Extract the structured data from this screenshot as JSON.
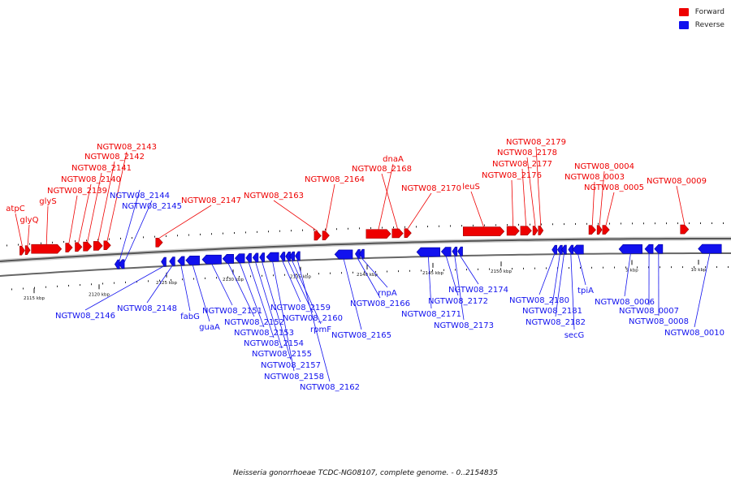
{
  "colors": {
    "forward": "#ee0000",
    "reverse": "#1111ee",
    "axis": "#555555"
  },
  "legend": {
    "forward": "Forward",
    "reverse": "Reverse"
  },
  "caption": "Neisseria gonorrhoeae TCDC-NG08107, complete genome. - 0..2154835",
  "scale_labels": [
    "2115 kbp",
    "2120 kbp",
    "2125 kbp",
    "2130 kbp",
    "2135 kbp",
    "2140 kbp",
    "2145 kbp",
    "2150 kbp",
    "5 kbp",
    "10 kbp"
  ],
  "genes": [
    {
      "name": "atpC",
      "strand": "forward",
      "start": 2114.45,
      "end": 2114.75
    },
    {
      "name": "glyQ",
      "strand": "forward",
      "start": 2114.85,
      "end": 2115.15
    },
    {
      "name": "glyS",
      "strand": "forward",
      "start": 2115.3,
      "end": 2117.5
    },
    {
      "name": "NGTW08_2139",
      "strand": "forward",
      "start": 2117.8,
      "end": 2118.3
    },
    {
      "name": "NGTW08_2140",
      "strand": "forward",
      "start": 2118.5,
      "end": 2119.0
    },
    {
      "name": "NGTW08_2141",
      "strand": "forward",
      "start": 2119.1,
      "end": 2119.7
    },
    {
      "name": "NGTW08_2142",
      "strand": "forward",
      "start": 2119.85,
      "end": 2120.5
    },
    {
      "name": "NGTW08_2143",
      "strand": "forward",
      "start": 2120.6,
      "end": 2121.1
    },
    {
      "name": "NGTW08_2144",
      "strand": "reverse",
      "start": 2121.4,
      "end": 2121.6
    },
    {
      "name": "NGTW08_2145",
      "strand": "reverse",
      "start": 2121.7,
      "end": 2122.1
    },
    {
      "name": "NGTW08_2146",
      "strand": "reverse",
      "start": 2124.8,
      "end": 2125.1
    },
    {
      "name": "NGTW08_2147",
      "strand": "forward",
      "start": 2124.4,
      "end": 2124.9
    },
    {
      "name": "NGTW08_2148",
      "strand": "reverse",
      "start": 2125.4,
      "end": 2125.8
    },
    {
      "name": "fabG",
      "strand": "reverse",
      "start": 2126.0,
      "end": 2126.5
    },
    {
      "name": "guaA",
      "strand": "reverse",
      "start": 2126.6,
      "end": 2127.6
    },
    {
      "name": "NGTW08_2151",
      "strand": "reverse",
      "start": 2127.8,
      "end": 2129.2
    },
    {
      "name": "NGTW08_2152",
      "strand": "reverse",
      "start": 2129.3,
      "end": 2130.1
    },
    {
      "name": "NGTW08_2153",
      "strand": "reverse",
      "start": 2130.2,
      "end": 2130.9
    },
    {
      "name": "NGTW08_2154",
      "strand": "reverse",
      "start": 2131.0,
      "end": 2131.4
    },
    {
      "name": "NGTW08_2155",
      "strand": "reverse",
      "start": 2131.5,
      "end": 2131.9
    },
    {
      "name": "NGTW08_2157",
      "strand": "reverse",
      "start": 2132.0,
      "end": 2132.3
    },
    {
      "name": "NGTW08_2158",
      "strand": "reverse",
      "start": 2132.5,
      "end": 2133.4
    },
    {
      "name": "NGTW08_2159",
      "strand": "reverse",
      "start": 2133.5,
      "end": 2133.8
    },
    {
      "name": "NGTW08_2160",
      "strand": "reverse",
      "start": 2133.9,
      "end": 2134.1
    },
    {
      "name": "rpmF",
      "strand": "reverse",
      "start": 2134.2,
      "end": 2134.5
    },
    {
      "name": "NGTW08_2162",
      "strand": "reverse",
      "start": 2134.6,
      "end": 2134.9
    },
    {
      "name": "NGTW08_2163",
      "strand": "forward",
      "start": 2136.0,
      "end": 2136.5
    },
    {
      "name": "NGTW08_2164",
      "strand": "forward",
      "start": 2136.6,
      "end": 2137.1
    },
    {
      "name": "NGTW08_2165",
      "strand": "reverse",
      "start": 2137.5,
      "end": 2138.8
    },
    {
      "name": "NGTW08_2166",
      "strand": "reverse",
      "start": 2139.0,
      "end": 2139.2
    },
    {
      "name": "rnpA",
      "strand": "reverse",
      "start": 2139.3,
      "end": 2139.5
    },
    {
      "name": "dnaA",
      "strand": "forward",
      "start": 2139.8,
      "end": 2141.6
    },
    {
      "name": "NGTW08_2168",
      "strand": "forward",
      "start": 2141.7,
      "end": 2142.5
    },
    {
      "name": "NGTW08_2170",
      "strand": "forward",
      "start": 2142.6,
      "end": 2143.1
    },
    {
      "name": "NGTW08_2171",
      "strand": "reverse",
      "start": 2143.5,
      "end": 2145.2
    },
    {
      "name": "NGTW08_2172",
      "strand": "reverse",
      "start": 2145.3,
      "end": 2146.0
    },
    {
      "name": "NGTW08_2173",
      "strand": "reverse",
      "start": 2146.1,
      "end": 2146.4
    },
    {
      "name": "NGTW08_2174",
      "strand": "reverse",
      "start": 2146.5,
      "end": 2146.8
    },
    {
      "name": "leuS",
      "strand": "forward",
      "start": 2146.9,
      "end": 2149.9
    },
    {
      "name": "NGTW08_2176",
      "strand": "forward",
      "start": 2150.1,
      "end": 2151.0
    },
    {
      "name": "NGTW08_2177",
      "strand": "forward",
      "start": 2151.1,
      "end": 2151.9
    },
    {
      "name": "NGTW08_2178",
      "strand": "forward",
      "start": 2152.0,
      "end": 2152.3
    },
    {
      "name": "NGTW08_2179",
      "strand": "forward",
      "start": 2152.4,
      "end": 2152.7
    },
    {
      "name": "NGTW08_2180",
      "strand": "reverse",
      "start": 2153.4,
      "end": 2153.7
    },
    {
      "name": "NGTW08_2181",
      "strand": "reverse",
      "start": 2153.8,
      "end": 2154.0
    },
    {
      "name": "NGTW08_2182",
      "strand": "reverse",
      "start": 2154.1,
      "end": 2154.3
    },
    {
      "name": "secG",
      "strand": "reverse",
      "start": 2154.6,
      "end": 2154.8
    },
    {
      "name": "tpiA",
      "strand": "reverse",
      "start": 2154.9,
      "end": 2155.7
    },
    {
      "name": "NGTW08_0003",
      "strand": "forward",
      "start": 2156.1,
      "end": 2156.6
    },
    {
      "name": "NGTW08_0004",
      "strand": "forward",
      "start": 2156.7,
      "end": 2157.0
    },
    {
      "name": "NGTW08_0005",
      "strand": "forward",
      "start": 2157.1,
      "end": 2157.6
    },
    {
      "name": "NGTW08_0006",
      "strand": "reverse",
      "start": 2158.3,
      "end": 2160.0
    },
    {
      "name": "NGTW08_0007",
      "strand": "reverse",
      "start": 2160.2,
      "end": 2160.8
    },
    {
      "name": "NGTW08_0008",
      "strand": "reverse",
      "start": 2160.9,
      "end": 2161.5
    },
    {
      "name": "NGTW08_0009",
      "strand": "forward",
      "start": 2162.8,
      "end": 2163.4
    },
    {
      "name": "NGTW08_0010",
      "strand": "reverse",
      "start": 2164.1,
      "end": 2165.8
    }
  ]
}
